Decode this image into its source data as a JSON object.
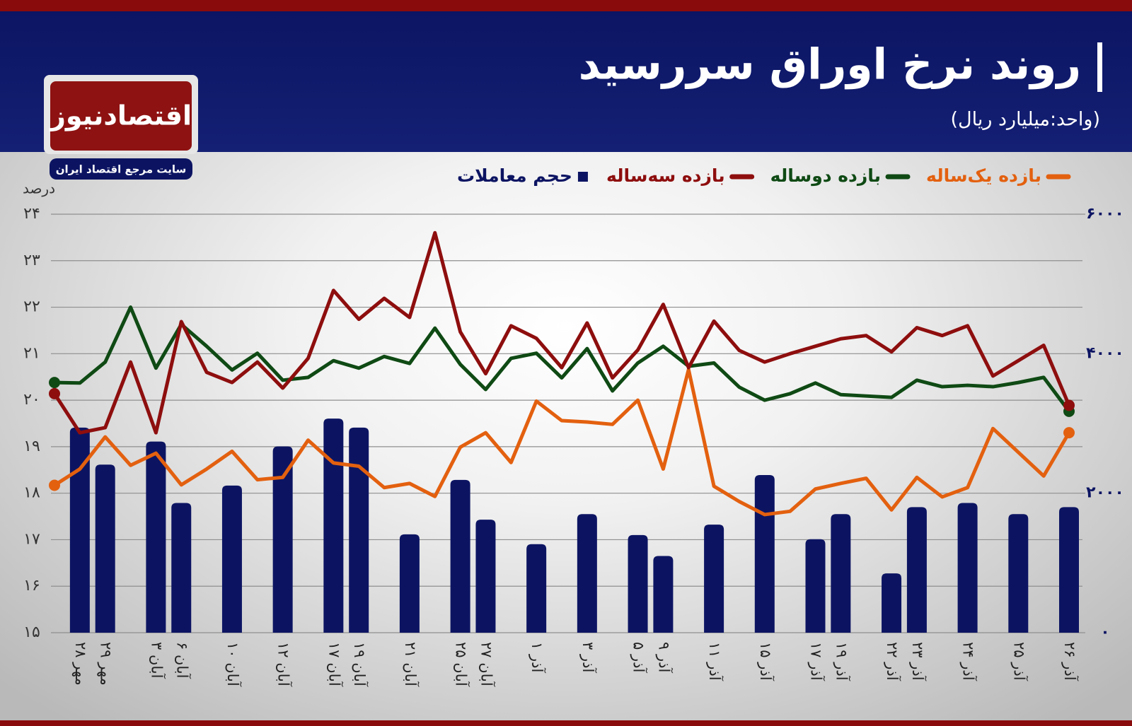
{
  "brand": {
    "name": "اقتصادنیوز",
    "tagline": "سایت مرجع اقتصاد ایران"
  },
  "chart_data": {
    "type": "bar",
    "title": "روند نرخ اوراق سررسید",
    "subtitle": "(واحد:میلیارد ریال)",
    "y_label": "درصد",
    "legend": "top-right",
    "grid": true,
    "categories": [
      null,
      "۲۸ مهر",
      "۲۹ مهر",
      null,
      "۳ آبان",
      "۶ آبان",
      null,
      "۱۰ آبان",
      null,
      "۱۲ آبان",
      null,
      "۱۷ آبان",
      "۱۹ آبان",
      null,
      "۲۱ آبان",
      null,
      "۲۵ آبان",
      "۲۷ آبان",
      null,
      "۱ آذر",
      null,
      "۳ آذر",
      null,
      "۵ آذر",
      "۹ آذر",
      null,
      "۱۱ آذر",
      null,
      "۱۵ آذر",
      null,
      "۱۷ آذر",
      "۱۹ آذر",
      null,
      "۲۲ آذر",
      "۲۳ آذر",
      null,
      "۲۴ آذر",
      null,
      "۲۵ آذر",
      null,
      "۲۶ آذر"
    ],
    "ylim": [
      15,
      24
    ],
    "yticks": [
      {
        "value": 15,
        "label": "۱۵"
      },
      {
        "value": 16,
        "label": "۱۶"
      },
      {
        "value": 17,
        "label": "۱۷"
      },
      {
        "value": 18,
        "label": "۱۸"
      },
      {
        "value": 19,
        "label": "۱۹"
      },
      {
        "value": 20,
        "label": "۲۰"
      },
      {
        "value": 21,
        "label": "۲۱"
      },
      {
        "value": 22,
        "label": "۲۲"
      },
      {
        "value": 23,
        "label": "۲۳"
      },
      {
        "value": 24,
        "label": "۲۴"
      }
    ],
    "y2lim": [
      0,
      6000
    ],
    "y2ticks": [
      {
        "value": 0,
        "label": "۰"
      },
      {
        "value": 2000,
        "label": "۲۰۰۰"
      },
      {
        "value": 4000,
        "label": "۴۰۰۰"
      },
      {
        "value": 6000,
        "label": "۶۰۰۰"
      }
    ],
    "series": [
      {
        "name": "بازده یک‌ساله",
        "type": "line",
        "color": "#e3600f",
        "values": [
          18.17,
          18.52,
          19.21,
          18.6,
          18.86,
          18.18,
          18.52,
          18.9,
          18.29,
          18.34,
          19.14,
          18.65,
          18.58,
          18.12,
          18.21,
          17.93,
          18.99,
          19.3,
          18.66,
          19.98,
          19.56,
          19.53,
          19.48,
          20.0,
          18.52,
          20.66,
          18.15,
          17.82,
          17.54,
          17.61,
          18.09,
          18.21,
          18.32,
          17.64,
          18.34,
          17.92,
          18.12,
          19.39,
          18.88,
          18.37,
          19.3
        ]
      },
      {
        "name": "بازده دوساله",
        "type": "line",
        "color": "#0f4a14",
        "values": [
          20.38,
          20.37,
          20.82,
          22.0,
          20.69,
          21.63,
          21.16,
          20.65,
          21.01,
          20.43,
          20.49,
          20.85,
          20.69,
          20.94,
          20.79,
          21.55,
          20.77,
          20.23,
          20.9,
          21.01,
          20.48,
          21.11,
          20.2,
          20.8,
          21.16,
          20.73,
          20.8,
          20.28,
          20.0,
          20.14,
          20.37,
          20.12,
          20.09,
          20.06,
          20.43,
          20.29,
          20.32,
          20.29,
          20.38,
          20.49,
          19.76
        ]
      },
      {
        "name": "بازده سه‌ساله",
        "type": "line",
        "color": "#8e0e0e",
        "values": [
          20.14,
          19.3,
          19.41,
          20.82,
          19.3,
          21.69,
          20.6,
          20.38,
          20.82,
          20.26,
          20.9,
          22.36,
          21.74,
          22.19,
          21.78,
          23.6,
          21.47,
          20.57,
          21.6,
          21.33,
          20.7,
          21.66,
          20.48,
          21.08,
          22.06,
          20.7,
          21.7,
          21.07,
          20.82,
          21.0,
          21.16,
          21.32,
          21.39,
          21.04,
          21.56,
          21.39,
          21.6,
          20.52,
          20.85,
          21.18,
          19.89
        ]
      },
      {
        "name": "حجم معاملات",
        "type": "bar",
        "axis": "y2",
        "color": "#0c1462",
        "values": [
          null,
          2940,
          2410,
          null,
          2740,
          1860,
          null,
          2110,
          null,
          2670,
          null,
          3070,
          2940,
          null,
          1410,
          null,
          2190,
          1620,
          null,
          1270,
          null,
          1700,
          null,
          1400,
          1100,
          null,
          1550,
          null,
          2260,
          null,
          1340,
          1700,
          null,
          850,
          1800,
          null,
          1860,
          null,
          1700,
          null,
          1800
        ]
      }
    ]
  }
}
